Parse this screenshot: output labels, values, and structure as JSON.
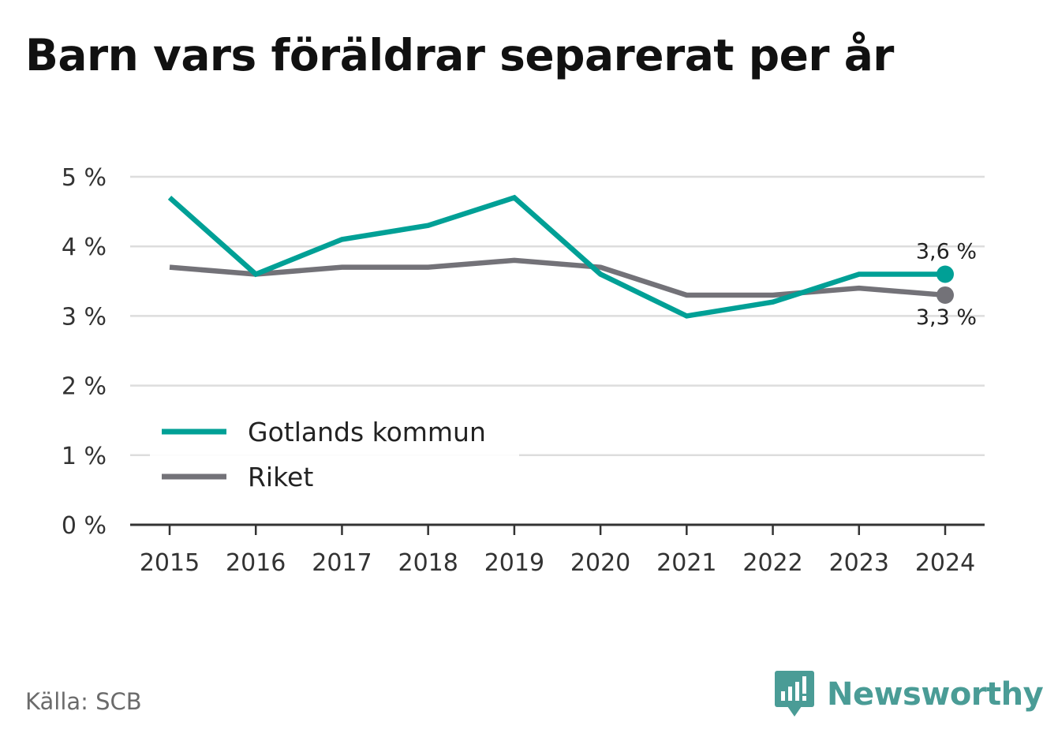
{
  "colors": {
    "gotland": "#00a096",
    "riket": "#737278",
    "grid": "#dddddd",
    "axis": "#333333",
    "brand": "#4a9c96"
  },
  "source": "Källa: SCB",
  "brand": {
    "name": "Newsworthy",
    "icon": "newsworthy-logo-icon"
  },
  "chart_data": {
    "type": "line",
    "title": "Barn vars föräldrar separerat per år",
    "xlabel": "",
    "ylabel": "",
    "x": [
      "2015",
      "2016",
      "2017",
      "2018",
      "2019",
      "2020",
      "2021",
      "2022",
      "2023",
      "2024"
    ],
    "ylim": [
      0,
      5
    ],
    "yticks": [
      0,
      1,
      2,
      3,
      4,
      5
    ],
    "ytick_labels": [
      "0 %",
      "1 %",
      "2 %",
      "3 %",
      "4 %",
      "5 %"
    ],
    "grid": true,
    "legend_position": "bottom-left",
    "series": [
      {
        "name": "Gotlands kommun",
        "color": "#00a096",
        "values": [
          4.7,
          3.6,
          4.1,
          4.3,
          4.7,
          3.6,
          3.0,
          3.2,
          3.6,
          3.6
        ],
        "end_label": "3,6 %"
      },
      {
        "name": "Riket",
        "color": "#737278",
        "values": [
          3.7,
          3.6,
          3.7,
          3.7,
          3.8,
          3.7,
          3.3,
          3.3,
          3.4,
          3.3
        ],
        "end_label": "3,3 %"
      }
    ]
  }
}
